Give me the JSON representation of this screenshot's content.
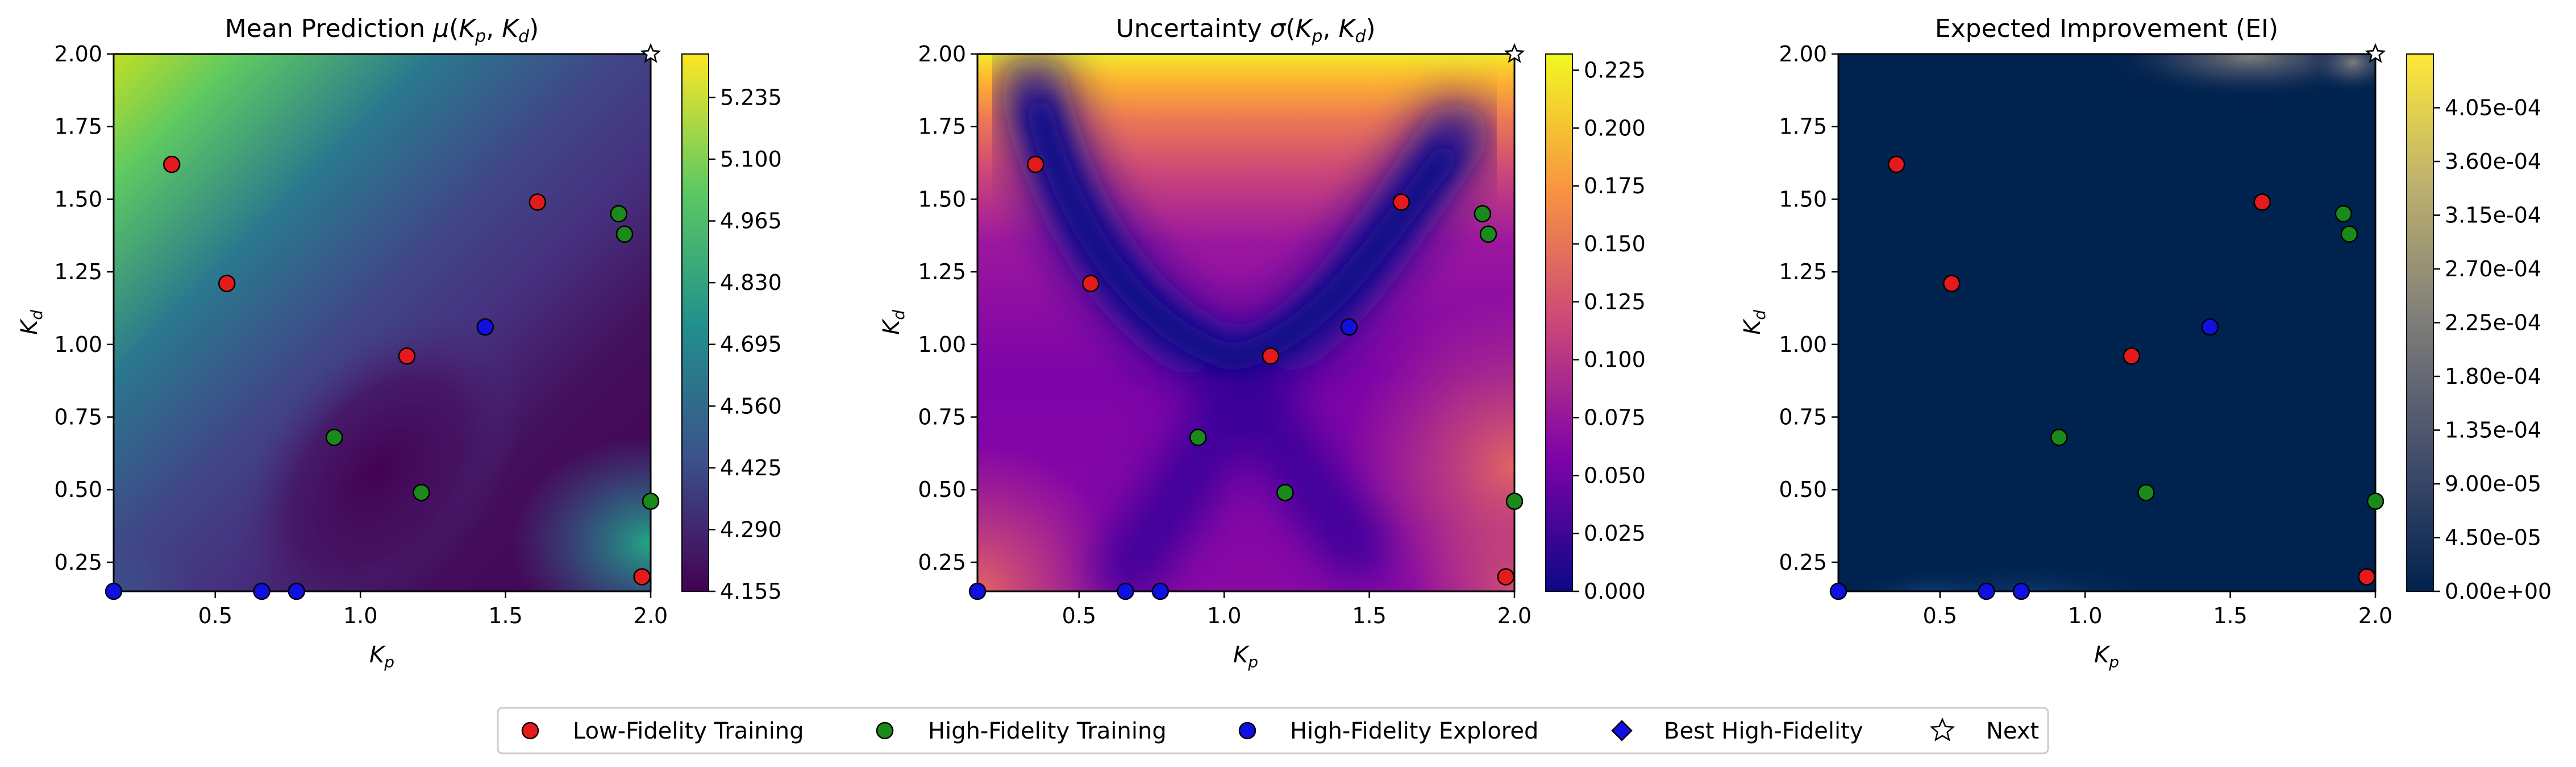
{
  "figure": {
    "panels": [
      {
        "id": "mean",
        "title": "Mean Prediction μ(Kp, Kd)",
        "xlabel": "Kp",
        "ylabel": "Kd",
        "colormap": "viridis",
        "cbar_ticks": [
          "4.155",
          "4.290",
          "4.425",
          "4.560",
          "4.695",
          "4.830",
          "4.965",
          "5.100",
          "5.235"
        ]
      },
      {
        "id": "sigma",
        "title": "Uncertainty σ(Kp, Kd)",
        "xlabel": "Kp",
        "ylabel": "Kd",
        "colormap": "plasma",
        "cbar_ticks": [
          "0.000",
          "0.025",
          "0.050",
          "0.075",
          "0.100",
          "0.125",
          "0.150",
          "0.175",
          "0.200",
          "0.225"
        ]
      },
      {
        "id": "ei",
        "title": "Expected Improvement (EI)",
        "xlabel": "Kp",
        "ylabel": "Kd",
        "colormap": "cividis",
        "cbar_ticks": [
          "0.00e+00",
          "4.50e-05",
          "9.00e-05",
          "1.35e-04",
          "1.80e-04",
          "2.25e-04",
          "2.70e-04",
          "3.15e-04",
          "3.60e-04",
          "4.05e-04"
        ]
      }
    ],
    "legend": [
      {
        "label": "Low-Fidelity Training",
        "marker": "circle",
        "color": "#e41a1c"
      },
      {
        "label": "High-Fidelity Training",
        "marker": "circle",
        "color": "#1a8a1a"
      },
      {
        "label": "High-Fidelity Explored",
        "marker": "circle",
        "color": "#1010e0"
      },
      {
        "label": "Best High-Fidelity",
        "marker": "diamond",
        "color": "#1010e0"
      },
      {
        "label": "Next",
        "marker": "star",
        "color": "#ffffff"
      }
    ]
  },
  "chart_data": [
    {
      "type": "heatmap",
      "title": "Mean Prediction μ(Kp, Kd)",
      "xlabel": "Kp",
      "ylabel": "Kd",
      "xlim": [
        0.15,
        2.0
      ],
      "ylim": [
        0.15,
        2.0
      ],
      "xticks": [
        0.5,
        1.0,
        1.5,
        2.0
      ],
      "yticks": [
        0.25,
        0.5,
        0.75,
        1.0,
        1.25,
        1.5,
        1.75,
        2.0
      ],
      "colorbar": {
        "min": 4.155,
        "max": 5.33,
        "ticks": [
          4.155,
          4.29,
          4.425,
          4.56,
          4.695,
          4.83,
          4.965,
          5.1,
          5.235
        ]
      }
    },
    {
      "type": "heatmap",
      "title": "Uncertainty σ(Kp, Kd)",
      "xlabel": "Kp",
      "ylabel": "Kd",
      "xlim": [
        0.15,
        2.0
      ],
      "ylim": [
        0.15,
        2.0
      ],
      "xticks": [
        0.5,
        1.0,
        1.5,
        2.0
      ],
      "yticks": [
        0.25,
        0.5,
        0.75,
        1.0,
        1.25,
        1.5,
        1.75,
        2.0
      ],
      "colorbar": {
        "min": 0.0,
        "max": 0.232,
        "ticks": [
          0.0,
          0.025,
          0.05,
          0.075,
          0.1,
          0.125,
          0.15,
          0.175,
          0.2,
          0.225
        ]
      }
    },
    {
      "type": "heatmap",
      "title": "Expected Improvement (EI)",
      "xlabel": "Kp",
      "ylabel": "Kd",
      "xlim": [
        0.15,
        2.0
      ],
      "ylim": [
        0.15,
        2.0
      ],
      "xticks": [
        0.5,
        1.0,
        1.5,
        2.0
      ],
      "yticks": [
        0.25,
        0.5,
        0.75,
        1.0,
        1.25,
        1.5,
        1.75,
        2.0
      ],
      "colorbar": {
        "min": 0.0,
        "max": 0.00045,
        "ticks": [
          0.0,
          4.5e-05,
          9e-05,
          0.000135,
          0.00018,
          0.000225,
          0.00027,
          0.000315,
          0.00036,
          0.000405
        ]
      }
    }
  ],
  "points": {
    "low_fidelity_training": [
      [
        0.35,
        1.62
      ],
      [
        0.54,
        1.21
      ],
      [
        1.16,
        0.96
      ],
      [
        1.61,
        1.49
      ],
      [
        1.97,
        0.2
      ]
    ],
    "high_fidelity_training": [
      [
        0.91,
        0.68
      ],
      [
        1.21,
        0.49
      ],
      [
        1.89,
        1.45
      ],
      [
        1.91,
        1.38
      ],
      [
        2.0,
        0.46
      ]
    ],
    "high_fidelity_explored": [
      [
        0.15,
        0.15
      ],
      [
        0.66,
        0.15
      ],
      [
        0.78,
        0.15
      ],
      [
        1.43,
        1.06
      ]
    ],
    "next": [
      [
        2.0,
        2.0
      ]
    ]
  }
}
